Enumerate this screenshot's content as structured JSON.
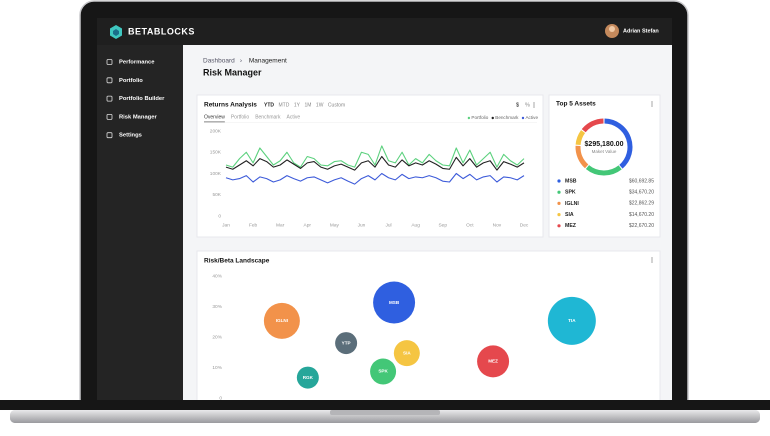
{
  "brand": "BETABLOCKS",
  "user": "Adrian Stefan",
  "nav": [
    "Performance",
    "Portfolio",
    "Portfolio Builder",
    "Risk Manager",
    "Settings"
  ],
  "breadcrumb": [
    "Dashboard",
    "Management"
  ],
  "page_title": "Risk Manager",
  "chart_data": [
    {
      "type": "line",
      "title": "Returns Analysis",
      "periods": [
        "YTD",
        "MTD",
        "1Y",
        "1M",
        "1W",
        "Custom"
      ],
      "views": [
        "Overview",
        "Portfolio",
        "Benchmark",
        "Active"
      ],
      "units": [
        "$",
        "%"
      ],
      "legend": "top-right",
      "grid": false,
      "x": [
        0,
        0.25,
        0.5,
        0.75,
        1,
        1.25,
        1.5,
        1.75,
        2,
        2.25,
        2.5,
        2.75,
        3,
        3.25,
        3.5,
        3.75,
        4,
        4.25,
        4.5,
        4.75,
        5,
        5.25,
        5.5,
        5.75,
        6,
        6.25,
        6.5,
        6.75,
        7,
        7.25,
        7.5,
        7.75,
        8,
        8.25,
        8.5,
        8.75,
        9,
        9.25,
        9.5,
        9.75,
        10,
        10.25,
        10.5,
        10.75,
        11
      ],
      "xlim": [
        0,
        11
      ],
      "xticks": [
        {
          "value": 0,
          "label": "Jan"
        },
        {
          "value": 1,
          "label": "Feb"
        },
        {
          "value": 2,
          "label": "Mar"
        },
        {
          "value": 3,
          "label": "Apr"
        },
        {
          "value": 4,
          "label": "May"
        },
        {
          "value": 5,
          "label": "Jun"
        },
        {
          "value": 6,
          "label": "Jul"
        },
        {
          "value": 7,
          "label": "Aug"
        },
        {
          "value": 8,
          "label": "Sep"
        },
        {
          "value": 9,
          "label": "Oct"
        },
        {
          "value": 10,
          "label": "Nov"
        },
        {
          "value": 11,
          "label": "Dec"
        }
      ],
      "ylim": [
        0,
        200000
      ],
      "yticks": [
        {
          "value": 200000,
          "label": "200K"
        },
        {
          "value": 150000,
          "label": "150K"
        },
        {
          "value": 100000,
          "label": "100K"
        },
        {
          "value": 50000,
          "label": "50K"
        },
        0
      ],
      "series": [
        {
          "name": "Portfolio",
          "color": "#5cd17e",
          "values": [
            120000,
            115000,
            135000,
            150000,
            125000,
            160000,
            140000,
            120000,
            130000,
            150000,
            125000,
            115000,
            140000,
            135000,
            120000,
            118000,
            128000,
            130000,
            120000,
            115000,
            150000,
            145000,
            120000,
            165000,
            130000,
            125000,
            150000,
            120000,
            135000,
            125000,
            145000,
            130000,
            120000,
            118000,
            160000,
            125000,
            155000,
            120000,
            135000,
            150000,
            115000,
            145000,
            130000,
            120000,
            135000
          ]
        },
        {
          "name": "Benchmark",
          "color": "#222222",
          "values": [
            115000,
            110000,
            120000,
            130000,
            118000,
            135000,
            128000,
            115000,
            120000,
            132000,
            122000,
            112000,
            125000,
            128000,
            115000,
            110000,
            118000,
            122000,
            115000,
            108000,
            125000,
            130000,
            115000,
            140000,
            120000,
            115000,
            132000,
            118000,
            125000,
            120000,
            130000,
            122000,
            112000,
            110000,
            138000,
            118000,
            135000,
            115000,
            125000,
            130000,
            108000,
            128000,
            122000,
            115000,
            125000
          ]
        },
        {
          "name": "Active",
          "color": "#3d5bd9",
          "values": [
            90000,
            85000,
            88000,
            95000,
            80000,
            92000,
            88000,
            80000,
            85000,
            95000,
            88000,
            82000,
            90000,
            92000,
            85000,
            78000,
            85000,
            90000,
            82000,
            75000,
            88000,
            95000,
            85000,
            100000,
            90000,
            85000,
            98000,
            88000,
            92000,
            90000,
            95000,
            90000,
            82000,
            80000,
            100000,
            88000,
            98000,
            85000,
            92000,
            95000,
            80000,
            92000,
            90000,
            85000,
            95000
          ]
        }
      ]
    },
    {
      "type": "donut",
      "title": "Top 5 Assets",
      "total": "$295,180.00",
      "total_label": "Maket Value",
      "categories": [
        "MSB",
        "SPK",
        "IGLNI",
        "SIA",
        "MEZ"
      ],
      "values": [
        60692.85,
        34670.2,
        22862.29,
        14670.2,
        22670.2
      ],
      "value_labels": [
        "$60,692.85",
        "$34,670.20",
        "$22,862.29",
        "$14,670.20",
        "$22,670.20"
      ],
      "colors": [
        "#2f5fe0",
        "#43c777",
        "#f2924a",
        "#f5c542",
        "#e5484d"
      ]
    },
    {
      "type": "bubble",
      "title": "Risk/Beta Landscape",
      "grid": false,
      "ylim": [
        0,
        40
      ],
      "yticks": [
        {
          "value": 40,
          "label": "40%"
        },
        {
          "value": 30,
          "label": "30%"
        },
        {
          "value": 20,
          "label": "20%"
        },
        {
          "value": 10,
          "label": "10%"
        },
        0
      ],
      "xlim": [
        0,
        100
      ],
      "categories": [
        "MSB",
        "IGLNI",
        "YTP",
        "SIA",
        "SPK",
        "RGK",
        "MEZ",
        "TIA"
      ],
      "x": [
        40.7,
        15.2,
        29.8,
        43.6,
        38.2,
        21.1,
        63.2,
        81.1
      ],
      "values": [
        31.3,
        25.3,
        18,
        14.7,
        8.7,
        6.7,
        12,
        25.3
      ],
      "sizes": [
        21,
        18,
        11,
        13,
        13,
        11,
        16,
        24
      ],
      "colors": [
        "#2f5fe0",
        "#f2924a",
        "#5b6e7a",
        "#f5c542",
        "#43c777",
        "#26a69a",
        "#e5484d",
        "#1fb7d4"
      ]
    }
  ]
}
